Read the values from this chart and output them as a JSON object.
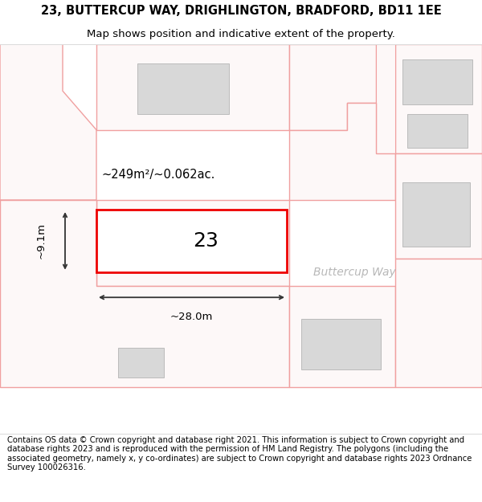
{
  "title_line1": "23, BUTTERCUP WAY, DRIGHLINGTON, BRADFORD, BD11 1EE",
  "title_line2": "Map shows position and indicative extent of the property.",
  "footer_text": "Contains OS data © Crown copyright and database right 2021. This information is subject to Crown copyright and database rights 2023 and is reproduced with the permission of HM Land Registry. The polygons (including the associated geometry, namely x, y co-ordinates) are subject to Crown copyright and database rights 2023 Ordnance Survey 100026316.",
  "background_color": "#ffffff",
  "map_bg_color": "#fdf8f8",
  "road_color": "#f0a0a0",
  "building_fill": "#d8d8d8",
  "building_edge": "#bbbbbb",
  "highlight_fill": "#ffffff",
  "highlight_edge": "#ee0000",
  "dim_line_color": "#333333",
  "street_label": "Buttercup Way",
  "property_number": "23",
  "area_text": "~249m²/~0.062ac.",
  "width_text": "~28.0m",
  "height_text": "~9.1m",
  "title_fontsize": 10.5,
  "subtitle_fontsize": 9.5,
  "footer_fontsize": 7.2
}
